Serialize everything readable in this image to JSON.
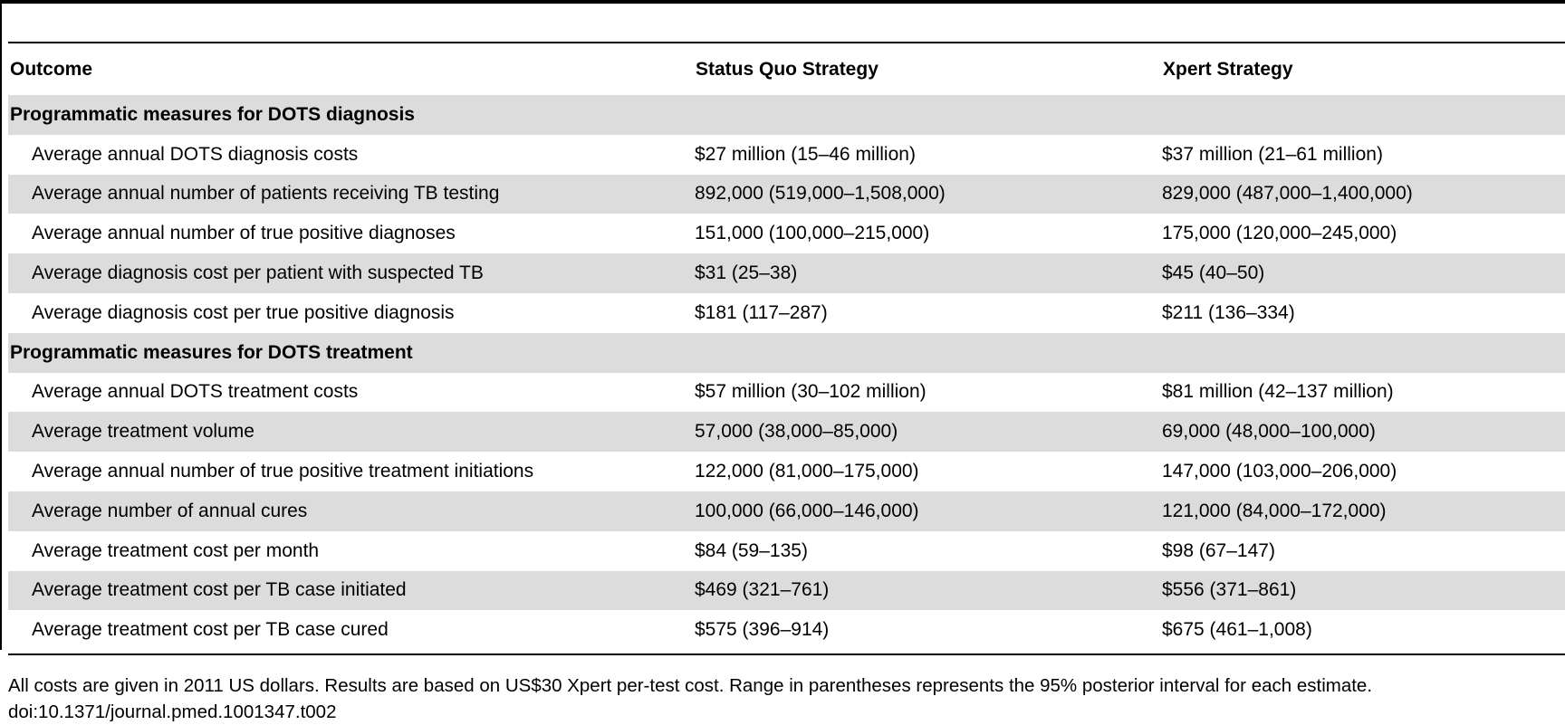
{
  "table": {
    "headers": [
      "Outcome",
      "Status Quo Strategy",
      "Xpert Strategy"
    ],
    "sections": [
      {
        "title": "Programmatic measures for DOTS diagnosis",
        "rows": [
          {
            "label": "Average annual DOTS diagnosis costs",
            "status_quo": "$27 million (15–46 million)",
            "xpert": "$37 million (21–61 million)"
          },
          {
            "label": "Average annual number of patients receiving TB testing",
            "status_quo": "892,000 (519,000–1,508,000)",
            "xpert": "829,000 (487,000–1,400,000)"
          },
          {
            "label": "Average annual number of true positive diagnoses",
            "status_quo": "151,000 (100,000–215,000)",
            "xpert": "175,000 (120,000–245,000)"
          },
          {
            "label": "Average diagnosis cost per patient with suspected TB",
            "status_quo": "$31 (25–38)",
            "xpert": "$45 (40–50)"
          },
          {
            "label": "Average diagnosis cost per true positive diagnosis",
            "status_quo": "$181 (117–287)",
            "xpert": "$211 (136–334)"
          }
        ]
      },
      {
        "title": "Programmatic measures for DOTS treatment",
        "rows": [
          {
            "label": "Average annual DOTS treatment costs",
            "status_quo": "$57 million (30–102 million)",
            "xpert": "$81 million (42–137 million)"
          },
          {
            "label": "Average treatment volume",
            "status_quo": "57,000 (38,000–85,000)",
            "xpert": "69,000 (48,000–100,000)"
          },
          {
            "label": "Average annual number of true positive treatment initiations",
            "status_quo": "122,000 (81,000–175,000)",
            "xpert": "147,000 (103,000–206,000)"
          },
          {
            "label": "Average number of annual cures",
            "status_quo": "100,000 (66,000–146,000)",
            "xpert": "121,000 (84,000–172,000)"
          },
          {
            "label": "Average treatment cost per month",
            "status_quo": "$84 (59–135)",
            "xpert": "$98 (67–147)"
          },
          {
            "label": "Average treatment cost per TB case initiated",
            "status_quo": "$469 (321–761)",
            "xpert": "$556 (371–861)"
          },
          {
            "label": "Average treatment cost per TB case cured",
            "status_quo": "$575 (396–914)",
            "xpert": "$675 (461–1,008)"
          }
        ]
      }
    ]
  },
  "footnote": {
    "line1": "All costs are given in 2011 US dollars. Results are based on US$30 Xpert per-test cost. Range in parentheses represents the 95% posterior interval for each estimate.",
    "line2": "doi:10.1371/journal.pmed.1001347.t002"
  },
  "colors": {
    "shade": "#dcdcdc",
    "rule": "#000000"
  }
}
